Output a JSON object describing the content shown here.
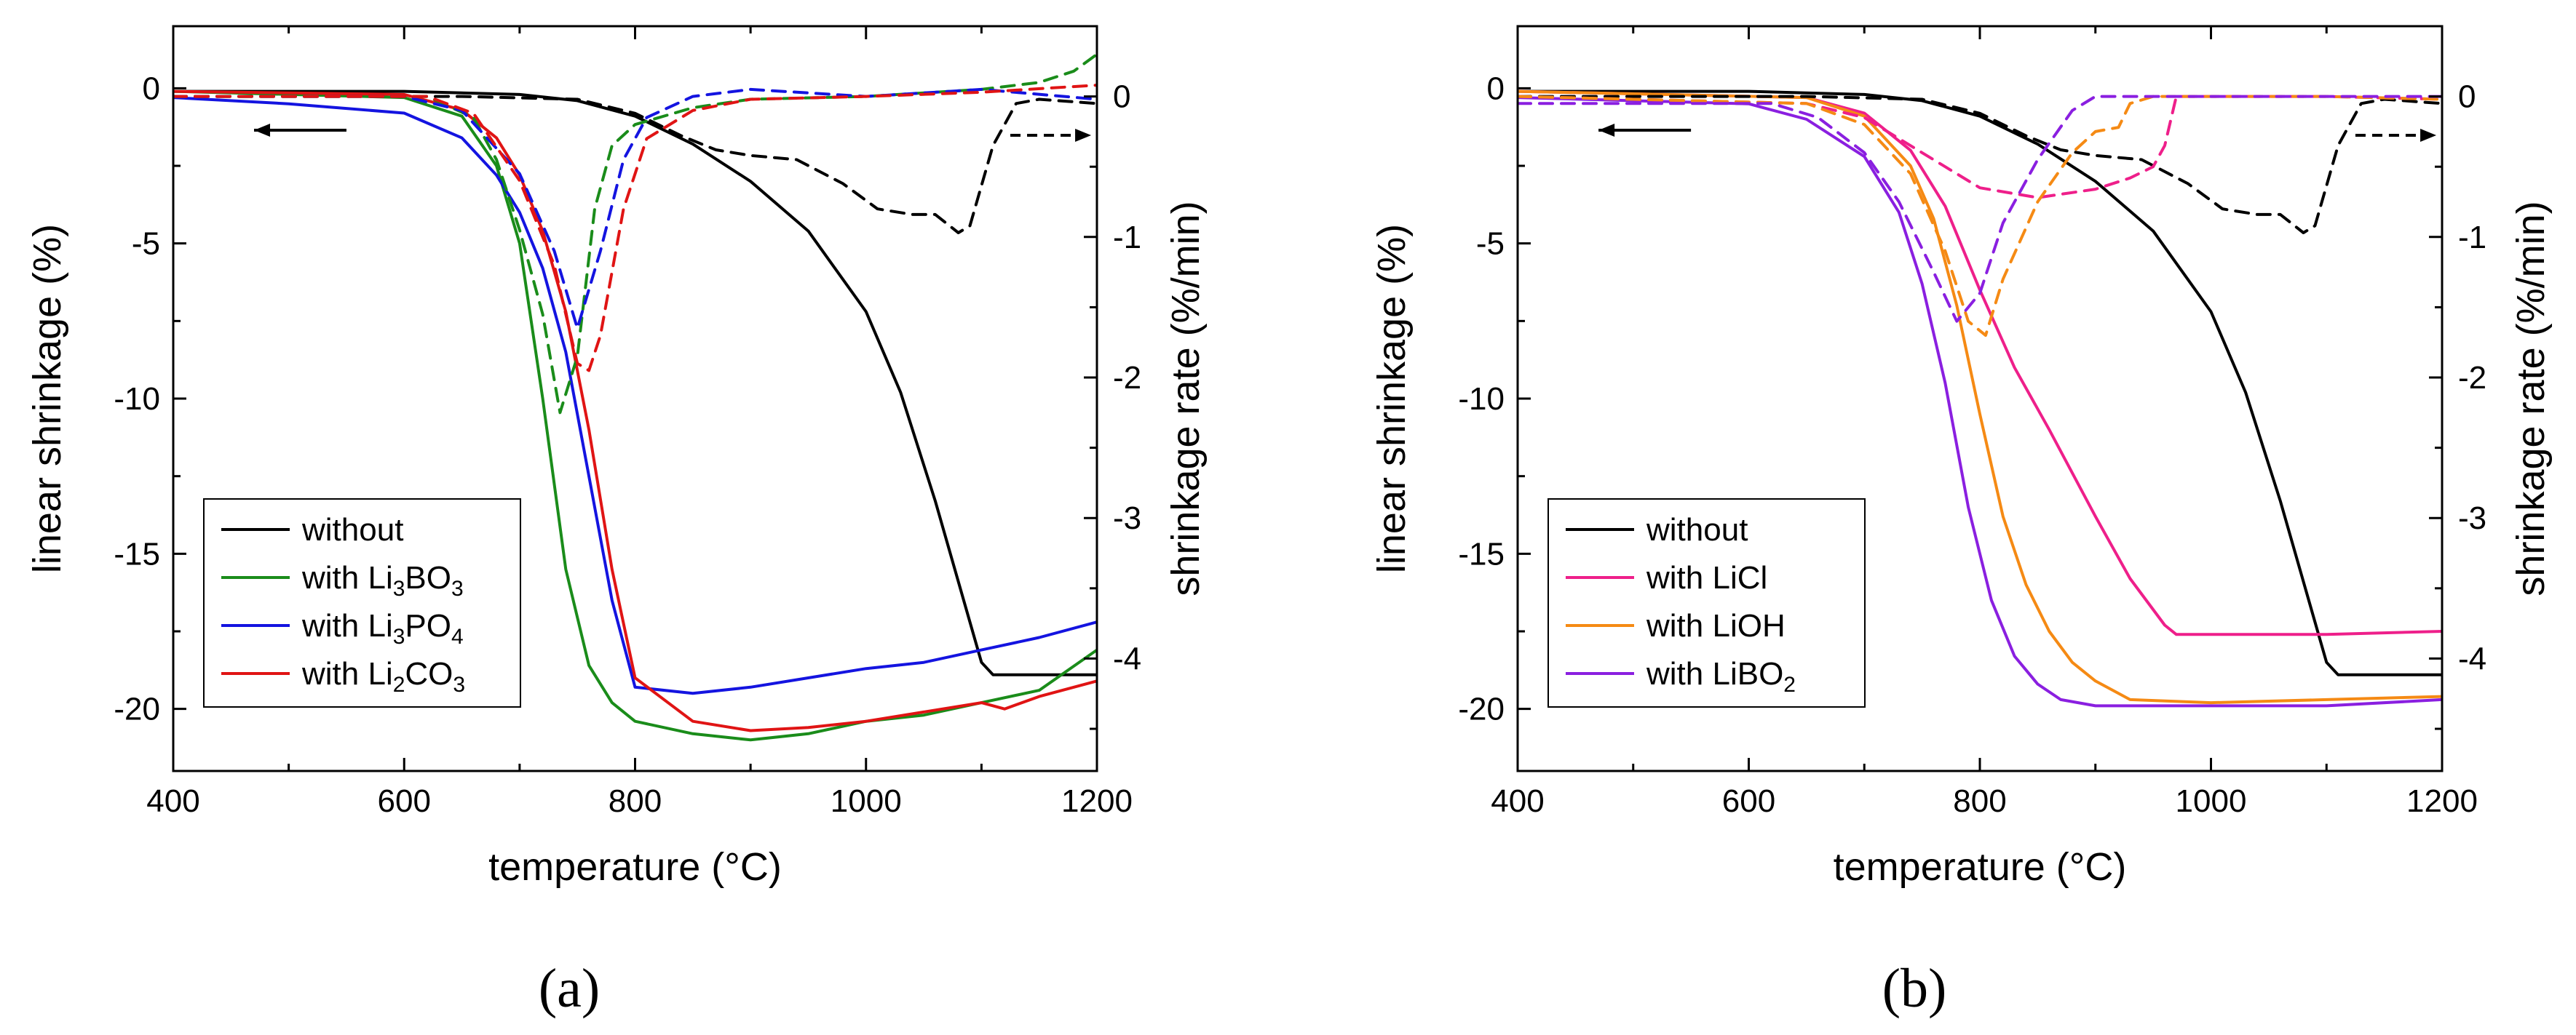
{
  "colors": {
    "without": "#000000",
    "Li3BO3": "#1a8c1a",
    "Li3PO4": "#1414e0",
    "Li2CO3": "#e01414",
    "LiCl": "#ee1f8a",
    "LiOH": "#f58a14",
    "LiBO2": "#8a1fe0"
  },
  "chart_data": [
    {
      "panel": "(a)",
      "panel_label": "(a)",
      "type": "line",
      "xlabel": "temperature (°C)",
      "ylabel_left": "linear shrinkage (%)",
      "ylabel_right": "shrinkage rate (%/min)",
      "xlim": [
        400,
        1200
      ],
      "ylim_left": [
        -22,
        2
      ],
      "ylim_right": [
        -4.8,
        0.5
      ],
      "x_ticks": [
        400,
        600,
        800,
        1000,
        1200
      ],
      "y_ticks_left": [
        0,
        -5,
        -10,
        -15,
        -20
      ],
      "y_ticks_right": [
        0,
        -1,
        -2,
        -3,
        -4
      ],
      "grid": false,
      "legend_position": "bottom-left",
      "arrows": [
        "left-pointing arrow near shrinkage curves (left axis)",
        "right-pointing arrow near rate curves (right axis)"
      ],
      "legend": [
        {
          "color_key": "without",
          "text": "without",
          "sub": "",
          "tail": ""
        },
        {
          "color_key": "Li3BO3",
          "text": "with Li",
          "sub": "3",
          "tail": "BO",
          "sub2": "3"
        },
        {
          "color_key": "Li3PO4",
          "text": "with Li",
          "sub": "3",
          "tail": "PO",
          "sub2": "4"
        },
        {
          "color_key": "Li2CO3",
          "text": "with Li",
          "sub": "2",
          "tail": "CO",
          "sub2": "3"
        }
      ],
      "series": [
        {
          "color_key": "without",
          "axis": "left",
          "style": "solid",
          "x": [
            400,
            600,
            700,
            750,
            800,
            850,
            900,
            950,
            1000,
            1030,
            1060,
            1090,
            1100,
            1110,
            1150,
            1200
          ],
          "y": [
            -0.1,
            -0.1,
            -0.2,
            -0.4,
            -0.9,
            -1.8,
            -3.0,
            -4.6,
            -7.2,
            -9.8,
            -13.3,
            -17.2,
            -18.5,
            -18.9,
            -18.9,
            -18.9
          ]
        },
        {
          "color_key": "Li3BO3",
          "axis": "left",
          "style": "solid",
          "x": [
            400,
            600,
            650,
            680,
            700,
            720,
            740,
            760,
            780,
            800,
            850,
            900,
            950,
            1000,
            1050,
            1100,
            1150,
            1200
          ],
          "y": [
            -0.1,
            -0.3,
            -0.9,
            -2.5,
            -5.0,
            -10.0,
            -15.5,
            -18.6,
            -19.8,
            -20.4,
            -20.8,
            -21.0,
            -20.8,
            -20.4,
            -20.2,
            -19.8,
            -19.4,
            -18.1
          ]
        },
        {
          "color_key": "Li3PO4",
          "axis": "left",
          "style": "solid",
          "x": [
            400,
            500,
            600,
            650,
            680,
            700,
            720,
            740,
            760,
            780,
            800,
            850,
            900,
            950,
            1000,
            1050,
            1100,
            1150,
            1200
          ],
          "y": [
            -0.3,
            -0.5,
            -0.8,
            -1.6,
            -2.8,
            -4.0,
            -5.8,
            -8.5,
            -12.5,
            -16.5,
            -19.3,
            -19.5,
            -19.3,
            -19.0,
            -18.7,
            -18.5,
            -18.1,
            -17.7,
            -17.2
          ]
        },
        {
          "color_key": "Li2CO3",
          "axis": "left",
          "style": "solid",
          "x": [
            400,
            600,
            650,
            680,
            700,
            720,
            740,
            760,
            780,
            800,
            850,
            900,
            950,
            1000,
            1050,
            1100,
            1120,
            1150,
            1200
          ],
          "y": [
            -0.1,
            -0.2,
            -0.7,
            -1.6,
            -2.8,
            -4.6,
            -7.2,
            -11.0,
            -15.5,
            -19.0,
            -20.4,
            -20.7,
            -20.6,
            -20.4,
            -20.1,
            -19.8,
            -20.0,
            -19.6,
            -19.1
          ]
        },
        {
          "color_key": "without",
          "axis": "right",
          "style": "dashed",
          "x": [
            400,
            650,
            750,
            800,
            840,
            870,
            900,
            940,
            980,
            1010,
            1040,
            1060,
            1080,
            1090,
            1110,
            1130,
            1150,
            1200
          ],
          "y": [
            0,
            0,
            -0.02,
            -0.12,
            -0.28,
            -0.38,
            -0.42,
            -0.45,
            -0.62,
            -0.8,
            -0.84,
            -0.84,
            -0.97,
            -0.92,
            -0.35,
            -0.05,
            -0.02,
            -0.05
          ]
        },
        {
          "color_key": "Li3BO3",
          "axis": "right",
          "style": "dashed",
          "x": [
            400,
            620,
            660,
            680,
            700,
            720,
            735,
            750,
            765,
            780,
            800,
            850,
            900,
            1000,
            1100,
            1150,
            1180,
            1200
          ],
          "y": [
            0,
            0,
            -0.15,
            -0.45,
            -0.95,
            -1.55,
            -2.25,
            -1.85,
            -0.8,
            -0.35,
            -0.2,
            -0.08,
            -0.02,
            0,
            0.05,
            0.1,
            0.18,
            0.3
          ]
        },
        {
          "color_key": "Li3PO4",
          "axis": "right",
          "style": "dashed",
          "x": [
            400,
            600,
            650,
            700,
            730,
            750,
            770,
            790,
            810,
            850,
            900,
            1000,
            1100,
            1200
          ],
          "y": [
            0,
            0,
            -0.1,
            -0.55,
            -1.1,
            -1.65,
            -1.1,
            -0.45,
            -0.15,
            0,
            0.05,
            0,
            0.05,
            -0.02
          ]
        },
        {
          "color_key": "Li2CO3",
          "axis": "right",
          "style": "dashed",
          "x": [
            400,
            620,
            660,
            700,
            730,
            750,
            760,
            770,
            790,
            810,
            850,
            900,
            1000,
            1100,
            1200
          ],
          "y": [
            0,
            0,
            -0.12,
            -0.6,
            -1.2,
            -1.9,
            -1.95,
            -1.7,
            -0.8,
            -0.3,
            -0.1,
            -0.02,
            0,
            0.03,
            0.08
          ]
        }
      ]
    },
    {
      "panel": "(b)",
      "panel_label": "(b)",
      "type": "line",
      "xlabel": "temperature (°C)",
      "ylabel_left": "linear shrinkage (%)",
      "ylabel_right": "shrinkage rate (%/min)",
      "xlim": [
        400,
        1200
      ],
      "ylim_left": [
        -22,
        2
      ],
      "ylim_right": [
        -4.8,
        0.5
      ],
      "x_ticks": [
        400,
        600,
        800,
        1000,
        1200
      ],
      "y_ticks_left": [
        0,
        -5,
        -10,
        -15,
        -20
      ],
      "y_ticks_right": [
        0,
        -1,
        -2,
        -3,
        -4
      ],
      "grid": false,
      "legend_position": "bottom-left",
      "arrows": [
        "left-pointing arrow near shrinkage curves (left axis)",
        "right-pointing arrow near rate curves (right axis)"
      ],
      "legend": [
        {
          "color_key": "without",
          "text": "without",
          "sub": "",
          "tail": ""
        },
        {
          "color_key": "LiCl",
          "text": "with LiCl",
          "sub": "",
          "tail": ""
        },
        {
          "color_key": "LiOH",
          "text": "with LiOH",
          "sub": "",
          "tail": ""
        },
        {
          "color_key": "LiBO2",
          "text": "with LiBO",
          "sub": "2",
          "tail": ""
        }
      ],
      "series": [
        {
          "color_key": "without",
          "axis": "left",
          "style": "solid",
          "x": [
            400,
            600,
            700,
            750,
            800,
            850,
            900,
            950,
            1000,
            1030,
            1060,
            1090,
            1100,
            1110,
            1150,
            1200
          ],
          "y": [
            -0.1,
            -0.1,
            -0.2,
            -0.4,
            -0.9,
            -1.8,
            -3.0,
            -4.6,
            -7.2,
            -9.8,
            -13.3,
            -17.2,
            -18.5,
            -18.9,
            -18.9,
            -18.9
          ]
        },
        {
          "color_key": "LiCl",
          "axis": "left",
          "style": "solid",
          "x": [
            400,
            650,
            700,
            740,
            770,
            800,
            830,
            860,
            900,
            930,
            960,
            970,
            1000,
            1100,
            1200
          ],
          "y": [
            -0.1,
            -0.3,
            -0.8,
            -2.0,
            -3.8,
            -6.5,
            -9.0,
            -11.0,
            -13.8,
            -15.8,
            -17.3,
            -17.6,
            -17.6,
            -17.6,
            -17.5
          ]
        },
        {
          "color_key": "LiOH",
          "axis": "left",
          "style": "solid",
          "x": [
            400,
            650,
            700,
            740,
            760,
            780,
            800,
            820,
            840,
            860,
            880,
            900,
            930,
            1000,
            1100,
            1200
          ],
          "y": [
            -0.1,
            -0.3,
            -0.9,
            -2.5,
            -4.2,
            -7.0,
            -10.5,
            -13.8,
            -16.0,
            -17.5,
            -18.5,
            -19.1,
            -19.7,
            -19.8,
            -19.7,
            -19.6
          ]
        },
        {
          "color_key": "LiBO2",
          "axis": "left",
          "style": "solid",
          "x": [
            400,
            600,
            650,
            700,
            730,
            750,
            770,
            790,
            810,
            830,
            850,
            870,
            900,
            1000,
            1100,
            1200
          ],
          "y": [
            -0.3,
            -0.5,
            -1.0,
            -2.2,
            -4.0,
            -6.3,
            -9.5,
            -13.5,
            -16.5,
            -18.3,
            -19.2,
            -19.7,
            -19.9,
            -19.9,
            -19.9,
            -19.7
          ]
        },
        {
          "color_key": "without",
          "axis": "right",
          "style": "dashed",
          "x": [
            400,
            650,
            750,
            800,
            840,
            870,
            900,
            940,
            980,
            1010,
            1040,
            1060,
            1080,
            1090,
            1110,
            1130,
            1150,
            1200
          ],
          "y": [
            0,
            0,
            -0.02,
            -0.12,
            -0.28,
            -0.38,
            -0.42,
            -0.45,
            -0.62,
            -0.8,
            -0.84,
            -0.84,
            -0.97,
            -0.92,
            -0.35,
            -0.05,
            -0.02,
            -0.05
          ]
        },
        {
          "color_key": "LiCl",
          "axis": "right",
          "style": "dashed",
          "x": [
            400,
            650,
            700,
            750,
            800,
            850,
            900,
            930,
            950,
            960,
            970,
            1000,
            1100,
            1200
          ],
          "y": [
            0,
            -0.05,
            -0.15,
            -0.4,
            -0.65,
            -0.72,
            -0.66,
            -0.58,
            -0.5,
            -0.35,
            0,
            0,
            0,
            -0.02
          ]
        },
        {
          "color_key": "LiOH",
          "axis": "right",
          "style": "dashed",
          "x": [
            400,
            650,
            700,
            740,
            770,
            790,
            805,
            820,
            850,
            880,
            900,
            920,
            930,
            950,
            1000,
            1100,
            1200
          ],
          "y": [
            0,
            -0.05,
            -0.2,
            -0.55,
            -1.1,
            -1.6,
            -1.7,
            -1.3,
            -0.75,
            -0.4,
            -0.25,
            -0.22,
            -0.05,
            0,
            0,
            0,
            -0.02
          ]
        },
        {
          "color_key": "LiBO2",
          "axis": "right",
          "style": "dashed",
          "x": [
            400,
            620,
            660,
            700,
            730,
            760,
            780,
            800,
            820,
            850,
            880,
            900,
            1000,
            1100,
            1200
          ],
          "y": [
            -0.05,
            -0.05,
            -0.15,
            -0.4,
            -0.75,
            -1.25,
            -1.6,
            -1.4,
            -0.9,
            -0.45,
            -0.1,
            0,
            0,
            0,
            0
          ]
        }
      ]
    }
  ]
}
